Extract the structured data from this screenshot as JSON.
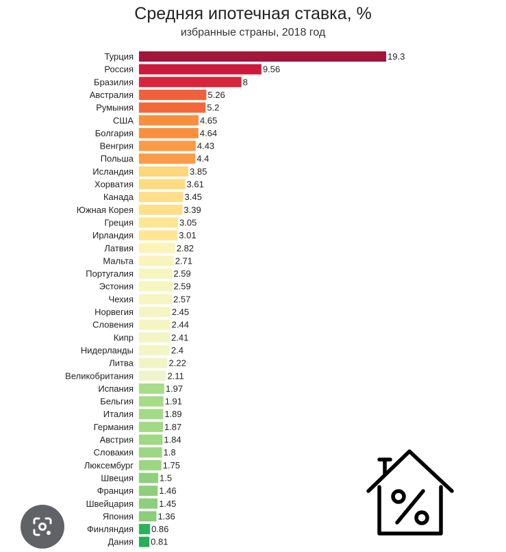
{
  "chart_data": {
    "type": "bar",
    "orientation": "horizontal",
    "title": "Средняя ипотечная ставка, %",
    "subtitle": "избранные страны, 2018 год",
    "xlabel": "",
    "ylabel": "",
    "xlim": [
      0,
      19.3
    ],
    "grid": false,
    "legend": "none",
    "categories": [
      "Турция",
      "Россия",
      "Бразилия",
      "Австралия",
      "Румыния",
      "США",
      "Болгария",
      "Венгрия",
      "Польша",
      "Исландия",
      "Хорватия",
      "Канада",
      "Южная Корея",
      "Греция",
      "Ирландия",
      "Латвия",
      "Мальта",
      "Португалия",
      "Эстония",
      "Чехия",
      "Норвегия",
      "Словения",
      "Кипр",
      "Нидерланды",
      "Литва",
      "Великобритания",
      "Испания",
      "Бельгия",
      "Италия",
      "Германия",
      "Австрия",
      "Словакия",
      "Люксембург",
      "Швеция",
      "Франция",
      "Швейцария",
      "Япония",
      "Финляндия",
      "Дания"
    ],
    "values": [
      19.3,
      9.56,
      8,
      5.26,
      5.2,
      4.65,
      4.64,
      4.43,
      4.4,
      3.85,
      3.61,
      3.45,
      3.39,
      3.05,
      3.01,
      2.82,
      2.71,
      2.59,
      2.59,
      2.57,
      2.45,
      2.44,
      2.41,
      2.4,
      2.22,
      2.11,
      1.97,
      1.91,
      1.89,
      1.87,
      1.84,
      1.8,
      1.75,
      1.5,
      1.46,
      1.45,
      1.36,
      0.86,
      0.81
    ],
    "value_labels": [
      "19.3",
      "9.56",
      "8",
      "5.26",
      "5.2",
      "4.65",
      "4.64",
      "4.43",
      "4.4",
      "3.85",
      "3.61",
      "3.45",
      "3.39",
      "3.05",
      "3.01",
      "2.82",
      "2.71",
      "2.59",
      "2.59",
      "2.57",
      "2.45",
      "2.44",
      "2.41",
      "2.4",
      "2.22",
      "2.11",
      "1.97",
      "1.91",
      "1.89",
      "1.87",
      "1.84",
      "1.8",
      "1.75",
      "1.5",
      "1.46",
      "1.45",
      "1.36",
      "0.86",
      "0.81"
    ],
    "colors": [
      "#a3153a",
      "#cc1a3c",
      "#d7263c",
      "#f0603a",
      "#f26838",
      "#f98e3c",
      "#f98f3d",
      "#fb9a46",
      "#fb9b47",
      "#fdd67d",
      "#fddb80",
      "#fede88",
      "#fedf8a",
      "#fee594",
      "#fee696",
      "#fbf3b8",
      "#f9f4bc",
      "#f7f5c0",
      "#f7f5c0",
      "#f7f5c2",
      "#f5f5c4",
      "#f5f5c4",
      "#f4f5c6",
      "#f4f5c6",
      "#f2f4c8",
      "#f1f4ca",
      "#a8dc8a",
      "#a6db88",
      "#a4da87",
      "#a2d986",
      "#a0d885",
      "#9ed784",
      "#9bd683",
      "#8fd07e",
      "#8dcf7d",
      "#8ccf7d",
      "#8acd7b",
      "#2db15a",
      "#27ad57"
    ]
  },
  "overlay": {
    "house_icon": "house-percent-icon",
    "lens_icon": "lens-icon"
  }
}
